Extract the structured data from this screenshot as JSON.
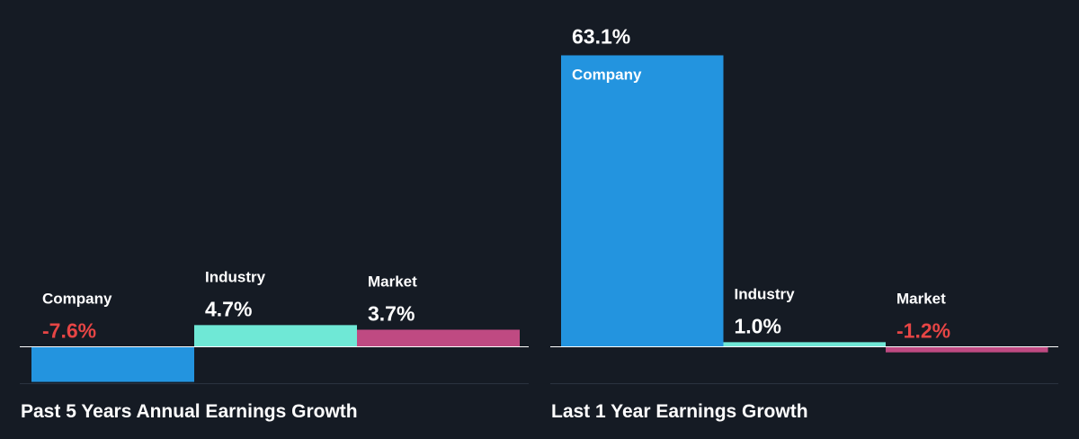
{
  "colors": {
    "background": "#151b24",
    "company": "#2394df",
    "industry": "#6fe8d6",
    "market": "#bf4a82",
    "positive_text": "#ffffff",
    "negative_text": "#e64545",
    "axis": "#ffffff",
    "separator": "#2b3340"
  },
  "chart_data": [
    {
      "type": "bar",
      "title": "Past 5 Years Annual Earnings Growth",
      "categories": [
        "Company",
        "Industry",
        "Market"
      ],
      "values": [
        -7.6,
        4.7,
        3.7
      ],
      "value_labels": [
        "-7.6%",
        "4.7%",
        "3.7%"
      ],
      "ylim": [
        -10.5,
        63.1
      ],
      "grid": false
    },
    {
      "type": "bar",
      "title": "Last 1 Year Earnings Growth",
      "categories": [
        "Company",
        "Industry",
        "Market"
      ],
      "values": [
        63.1,
        1.0,
        -1.2
      ],
      "value_labels": [
        "63.1%",
        "1.0%",
        "-1.2%"
      ],
      "ylim": [
        -10.5,
        63.1
      ],
      "grid": false
    }
  ]
}
